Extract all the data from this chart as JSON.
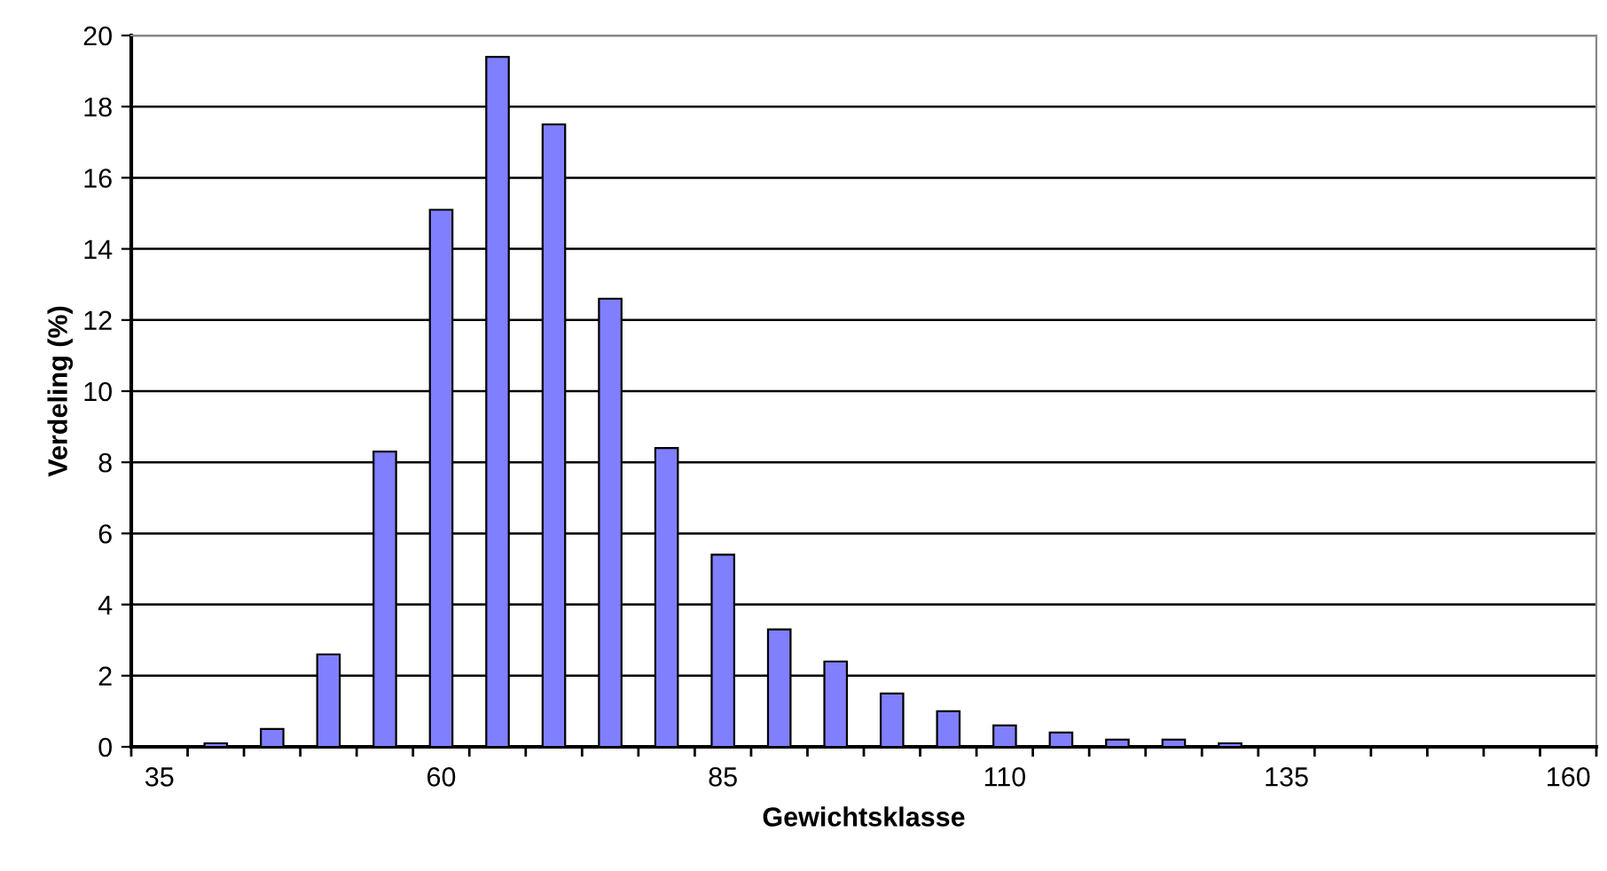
{
  "chart_data": {
    "type": "bar",
    "xlabel": "Gewichtsklasse",
    "ylabel": "Verdeling (%)",
    "categories": [
      "35",
      null,
      null,
      null,
      null,
      "60",
      null,
      null,
      null,
      null,
      "85",
      null,
      null,
      null,
      null,
      "110",
      null,
      null,
      null,
      null,
      "135",
      null,
      null,
      null,
      null,
      "160"
    ],
    "values": [
      0,
      0.1,
      0.5,
      2.6,
      8.3,
      15.1,
      19.4,
      17.5,
      12.6,
      8.4,
      5.4,
      3.3,
      2.4,
      1.5,
      1.0,
      0.6,
      0.4,
      0.2,
      0.2,
      0.1,
      null,
      null,
      null,
      null,
      0,
      null
    ],
    "color": "#8080ff",
    "ylim": [
      0,
      20
    ],
    "yticks": [
      0,
      2,
      4,
      6,
      8,
      10,
      12,
      14,
      16,
      18,
      20
    ],
    "grid": "y",
    "legend": false
  }
}
